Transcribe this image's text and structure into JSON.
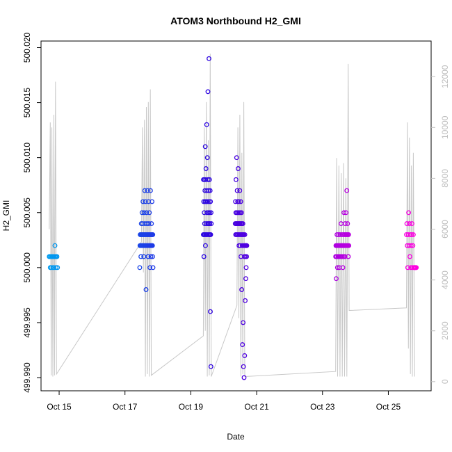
{
  "chart_data": {
    "type": "scatter",
    "title": "ATOM3 Northbound H2_GMI",
    "xlabel": "Date",
    "ylabel": "H2_GMI",
    "x_ticks": [
      "Oct 15",
      "Oct 17",
      "Oct 19",
      "Oct 21",
      "Oct 23",
      "Oct 25"
    ],
    "x_tick_values": [
      15,
      17,
      19,
      21,
      23,
      25
    ],
    "xlim": [
      14.45,
      26.3
    ],
    "ylim": [
      499.9888,
      500.0206
    ],
    "y_ticks": [
      "499.990",
      "499.995",
      "500.000",
      "500.005",
      "500.010",
      "500.015",
      "500.020"
    ],
    "y_tick_values": [
      499.99,
      499.995,
      500.0,
      500.005,
      500.01,
      500.015,
      500.02
    ],
    "y2lim": [
      -360,
      13400
    ],
    "y2_ticks": [
      "0",
      "2000",
      "4000",
      "6000",
      "8000",
      "10000",
      "12000"
    ],
    "y2_tick_values": [
      0,
      2000,
      4000,
      6000,
      8000,
      10000,
      12000
    ],
    "grid": false,
    "legend": "none",
    "colors": {
      "background_line": "#c8c8c8",
      "right_axis": "#bdbdbd",
      "ramp_start": "#009cf0",
      "ramp_end": "#ff00e0"
    },
    "line_series": [
      [
        14.7,
        6000
      ],
      [
        14.73,
        10200
      ],
      [
        14.76,
        250
      ],
      [
        14.78,
        10000
      ],
      [
        14.81,
        200
      ],
      [
        14.84,
        10500
      ],
      [
        14.86,
        250
      ],
      [
        14.89,
        11800
      ],
      [
        14.92,
        300
      ],
      [
        17.5,
        5500
      ],
      [
        17.53,
        10000
      ],
      [
        17.56,
        4300
      ],
      [
        17.59,
        10300
      ],
      [
        17.62,
        200
      ],
      [
        17.65,
        10800
      ],
      [
        17.68,
        300
      ],
      [
        17.71,
        11000
      ],
      [
        17.74,
        200
      ],
      [
        17.77,
        11500
      ],
      [
        17.8,
        250
      ],
      [
        19.38,
        1800
      ],
      [
        19.41,
        10000
      ],
      [
        19.44,
        2000
      ],
      [
        19.47,
        11000
      ],
      [
        19.5,
        200
      ],
      [
        19.53,
        9500
      ],
      [
        19.56,
        250
      ],
      [
        19.59,
        12900
      ],
      [
        19.62,
        200
      ],
      [
        20.4,
        3000
      ],
      [
        20.43,
        10000
      ],
      [
        20.46,
        2500
      ],
      [
        20.49,
        10500
      ],
      [
        20.52,
        200
      ],
      [
        20.55,
        9000
      ],
      [
        20.58,
        300
      ],
      [
        20.61,
        11000
      ],
      [
        20.64,
        200
      ],
      [
        23.4,
        400
      ],
      [
        23.43,
        8800
      ],
      [
        23.46,
        200
      ],
      [
        23.5,
        8500
      ],
      [
        23.53,
        200
      ],
      [
        23.57,
        8200
      ],
      [
        23.6,
        200
      ],
      [
        23.64,
        8600
      ],
      [
        23.67,
        200
      ],
      [
        23.71,
        8000
      ],
      [
        23.74,
        200
      ],
      [
        23.78,
        12500
      ],
      [
        23.81,
        2800
      ],
      [
        25.55,
        2900
      ],
      [
        25.58,
        10200
      ],
      [
        25.61,
        1300
      ],
      [
        25.64,
        9600
      ],
      [
        25.67,
        300
      ],
      [
        25.7,
        8500
      ],
      [
        25.73,
        200
      ],
      [
        25.76,
        9000
      ],
      [
        25.8,
        200
      ]
    ],
    "point_groups": [
      {
        "x_range": [
          14.7,
          14.95
        ],
        "values": [
          500.001,
          500.001,
          500.0,
          500.001,
          500.0,
          500.001,
          500.001,
          500.0,
          500.001,
          500.0,
          500.001,
          500.002,
          500.001,
          500.0,
          500.001,
          500.001,
          500.0
        ]
      },
      {
        "x_range": [
          17.45,
          17.85
        ],
        "values": [
          500.0,
          500.002,
          500.003,
          500.002,
          500.003,
          500.002,
          500.001,
          500.003,
          500.004,
          500.002,
          500.003,
          500.002,
          500.005,
          500.003,
          500.002,
          500.004,
          500.003,
          500.006,
          500.002,
          500.003,
          500.002,
          500.001,
          500.003,
          500.005,
          500.002,
          500.003,
          500.007,
          500.004,
          500.002,
          500.003,
          500.006,
          500.002,
          500.003,
          499.998,
          500.002,
          500.003,
          500.005,
          500.002,
          500.004,
          500.003,
          500.002,
          500.007,
          500.003,
          500.002,
          500.001,
          500.003,
          500.006,
          500.002,
          500.004,
          500.003,
          500.002,
          500.005,
          500.003,
          500.002,
          500.0,
          500.002,
          500.003,
          500.007,
          500.002,
          500.001,
          500.003,
          500.002,
          500.004,
          500.003,
          500.002,
          500.006,
          500.003,
          500.002,
          500.001,
          500.003,
          500.0
        ]
      },
      {
        "x_range": [
          19.38,
          19.62
        ],
        "values": [
          500.003,
          500.008,
          500.006,
          500.001,
          500.003,
          500.005,
          500.008,
          500.004,
          500.003,
          500.007,
          500.006,
          500.011,
          500.002,
          500.008,
          500.003,
          500.009,
          500.006,
          500.004,
          500.003,
          500.013,
          500.007,
          500.005,
          500.003,
          500.01,
          500.006,
          500.004,
          500.016,
          500.008,
          500.003,
          500.005,
          500.007,
          500.004,
          500.019,
          500.006,
          500.003,
          500.008,
          500.005,
          500.004,
          500.003,
          500.007,
          499.996,
          500.006,
          500.003,
          499.991,
          500.005,
          500.004
        ]
      },
      {
        "x_range": [
          20.35,
          20.7
        ],
        "values": [
          500.004,
          500.006,
          500.003,
          500.005,
          500.008,
          500.004,
          500.003,
          500.01,
          500.005,
          500.004,
          500.007,
          500.003,
          500.006,
          500.004,
          500.005,
          500.009,
          500.003,
          500.004,
          500.006,
          500.002,
          500.005,
          500.004,
          500.003,
          500.007,
          500.004,
          500.002,
          500.005,
          500.003,
          500.006,
          500.001,
          500.004,
          500.003,
          500.005,
          499.998,
          500.004,
          500.003,
          500.002,
          499.993,
          500.003,
          500.004,
          499.995,
          500.003,
          499.991,
          500.002,
          500.003,
          499.99,
          500.002,
          500.001,
          499.992,
          500.003,
          500.002,
          499.997,
          500.001,
          500.002,
          499.999,
          500.002,
          500.0,
          500.002,
          500.001,
          500.002
        ]
      },
      {
        "x_range": [
          23.4,
          23.8
        ],
        "values": [
          500.001,
          500.002,
          499.999,
          500.002,
          500.001,
          500.003,
          500.002,
          500.0,
          500.002,
          500.001,
          500.002,
          500.003,
          500.001,
          500.002,
          500.0,
          500.002,
          500.001,
          500.003,
          500.002,
          500.001,
          500.002,
          500.004,
          500.001,
          500.002,
          500.003,
          500.002,
          500.001,
          500.002,
          500.0,
          500.003,
          500.002,
          500.001,
          500.005,
          500.002,
          500.003,
          500.002,
          500.001,
          500.004,
          500.003,
          500.002,
          500.005,
          500.003,
          500.002,
          500.007,
          500.003,
          500.002,
          500.004,
          500.003,
          500.002,
          500.001,
          500.003,
          500.002
        ]
      },
      {
        "x_range": [
          25.55,
          25.85
        ],
        "values": [
          500.003,
          500.004,
          500.002,
          500.0,
          500.003,
          500.005,
          500.002,
          500.004,
          500.001,
          500.003,
          500.0,
          500.002,
          500.003,
          500.004,
          500.0,
          500.002,
          500.003,
          500.0,
          500.0,
          500.0,
          500.0,
          500.0,
          500.0,
          500.0
        ]
      }
    ]
  }
}
